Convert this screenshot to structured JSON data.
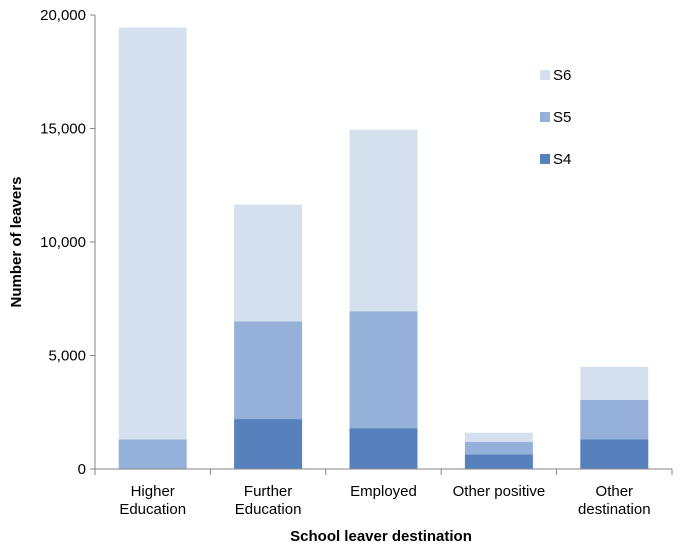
{
  "chart_data": {
    "type": "bar",
    "stacked": true,
    "categories": [
      [
        "Higher",
        "Education"
      ],
      [
        "Further",
        "Education"
      ],
      [
        "Employed"
      ],
      [
        "Other positive"
      ],
      [
        "Other",
        "destination"
      ]
    ],
    "series": [
      {
        "name": "S4",
        "color": "#5681bd",
        "values": [
          0,
          2200,
          1800,
          650,
          1300
        ]
      },
      {
        "name": "S5",
        "color": "#95b1d9",
        "values": [
          1300,
          4300,
          5150,
          550,
          1750
        ]
      },
      {
        "name": "S6",
        "color": "#d5e0ef",
        "values": [
          18150,
          5150,
          8000,
          400,
          1450
        ]
      }
    ],
    "legend_order": [
      "S6",
      "S5",
      "S4"
    ],
    "legend_position": "top-right",
    "xlabel": "School leaver destination",
    "ylabel": "Number of leavers",
    "ylim": [
      0,
      20000
    ],
    "yticks": [
      0,
      5000,
      10000,
      15000,
      20000
    ],
    "ytick_labels": [
      "0",
      "5,000",
      "10,000",
      "15,000",
      "20,000"
    ],
    "grid": false
  }
}
